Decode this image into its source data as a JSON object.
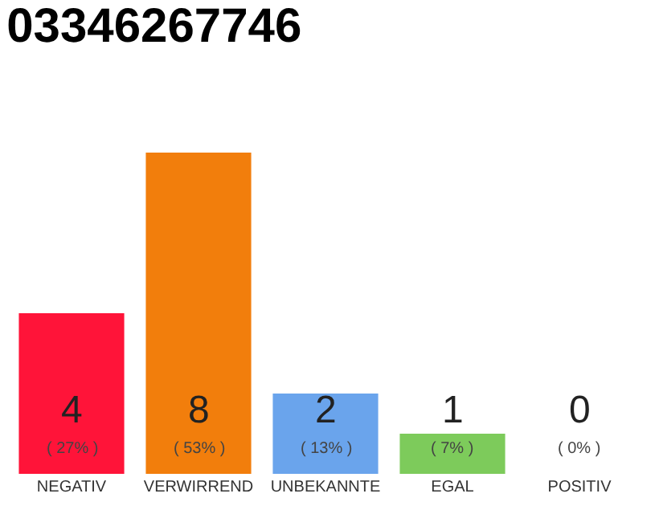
{
  "chart_data": {
    "type": "bar",
    "title": "03346267746",
    "categories": [
      "NEGATIV",
      "VERWIRREND",
      "UNBEKANNTE",
      "EGAL",
      "POSITIV"
    ],
    "values": [
      4,
      8,
      2,
      1,
      0
    ],
    "colors": [
      "#ff1439",
      "#f27e0c",
      "#6aa4ec",
      "#7dcb5b",
      "#c8c8c8"
    ],
    "value_labels": [
      "4\n( 27% )",
      "8\n( 53% )",
      "2\n( 13% )",
      "1\n( 7% )",
      "0\n( 0% )"
    ],
    "ylim": [
      0,
      8
    ],
    "tick_labels": "x",
    "legend": false
  }
}
